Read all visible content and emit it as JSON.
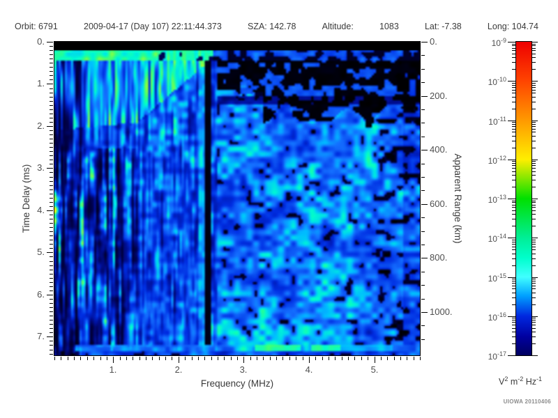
{
  "header": {
    "items": [
      "Orbit: 6791",
      "2009-04-17 (Day 107) 22:11:44.373",
      "SZA: 142.78",
      "Altitude:",
      "1083",
      "Lat: -7.38",
      "Long: 104.74"
    ]
  },
  "chart_data": {
    "type": "heatmap",
    "title": "",
    "xlabel": "Frequency (MHz)",
    "ylabel_left": "Time Delay (ms)",
    "ylabel_right": "Apparent Range (km)",
    "xlim": [
      0.1,
      5.7
    ],
    "ylim_left": [
      0,
      7.44
    ],
    "ylim_right": [
      0,
      1160
    ],
    "x_minor_step": 0.1,
    "y_minor_step": 0.1,
    "y2_minor_step": 50,
    "x_major_ticks": [
      {
        "v": 1,
        "label": "1."
      },
      {
        "v": 2,
        "label": "2."
      },
      {
        "v": 3,
        "label": "3."
      },
      {
        "v": 4,
        "label": "4."
      },
      {
        "v": 5,
        "label": "5."
      }
    ],
    "y_major_ticks": [
      {
        "v": 0,
        "label": "0."
      },
      {
        "v": 1,
        "label": "1."
      },
      {
        "v": 2,
        "label": "2."
      },
      {
        "v": 3,
        "label": "3."
      },
      {
        "v": 4,
        "label": "4."
      },
      {
        "v": 5,
        "label": "5."
      },
      {
        "v": 6,
        "label": "6."
      },
      {
        "v": 7,
        "label": "7."
      }
    ],
    "y2_major_ticks": [
      {
        "v": 0,
        "label": "0."
      },
      {
        "v": 200,
        "label": "200."
      },
      {
        "v": 400,
        "label": "400."
      },
      {
        "v": 600,
        "label": "600."
      },
      {
        "v": 800,
        "label": "800."
      },
      {
        "v": 1000,
        "label": "1000."
      }
    ],
    "colorbar": {
      "scale": "log",
      "tick_exponents": [
        -9,
        -10,
        -11,
        -12,
        -13,
        -14,
        -15,
        -16,
        -17
      ],
      "units_parts": [
        [
          "V",
          "2"
        ],
        [
          "m",
          "-2"
        ],
        [
          "Hz",
          "-1"
        ]
      ],
      "gradient_stops": [
        [
          0,
          "#ee0000"
        ],
        [
          0.125,
          "#ff4400"
        ],
        [
          0.25,
          "#ff9900"
        ],
        [
          0.375,
          "#ffee00"
        ],
        [
          0.5,
          "#00e000"
        ],
        [
          0.625,
          "#00ee96"
        ],
        [
          0.69,
          "#00ffcc"
        ],
        [
          0.75,
          "#40ffff"
        ],
        [
          0.81,
          "#00a0ff"
        ],
        [
          0.875,
          "#0028e0"
        ],
        [
          0.94,
          "#0000a0"
        ],
        [
          1,
          "#000060"
        ]
      ]
    },
    "background": "#000000",
    "features": [
      "diffuse blue noise speckle across all frequencies and delays",
      "black band (no data) at top above ~0.2 ms",
      "bright green ionospheric echo band near 0.3 ms from 0.1 to ~1.8 MHz",
      "vertical green/cyan electron-plasma-oscillation striations below ~1.3 MHz",
      "mostly black low-signal region upper right, above ~1 ms beyond 2.4 MHz",
      "narrow dark vertical absorption lane near 2.35 MHz with bright cyan edge at 2.25 MHz",
      "bright horizontal surface-reflection line near 7.3 ms, strongest green 3.2-3.9 and 4.1-4.5 MHz",
      "darker sparse region at far right beyond ~5.2 MHz"
    ]
  },
  "watermark": "UIOWA 20110406"
}
